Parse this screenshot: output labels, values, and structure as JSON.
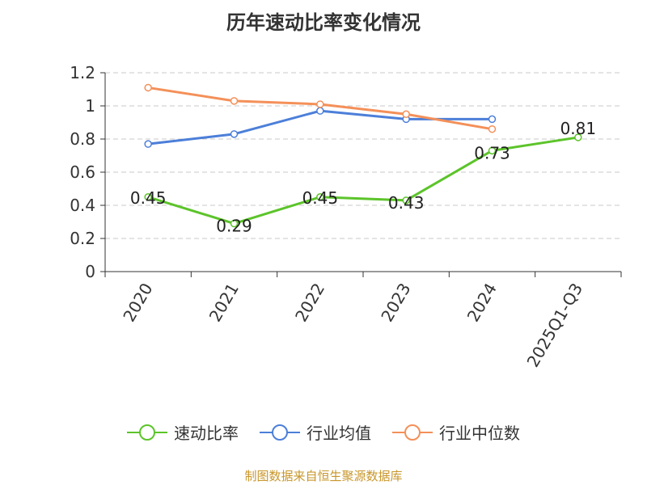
{
  "chart_data": {
    "type": "line",
    "title": "历年速动比率变化情况",
    "categories": [
      "2020",
      "2021",
      "2022",
      "2023",
      "2024",
      "2025Q1-Q3"
    ],
    "ylim": [
      0,
      1.2
    ],
    "yticks": [
      "0",
      "0.2",
      "0.4",
      "0.6",
      "0.8",
      "1",
      "1.2"
    ],
    "grid": true,
    "legend_position": "bottom",
    "series": [
      {
        "name": "速动比率",
        "color": "#5cc42a",
        "values": [
          0.45,
          0.29,
          0.45,
          0.43,
          0.73,
          0.81
        ],
        "data_labels": [
          "0.45",
          "0.29",
          "0.45",
          "0.43",
          "0.73",
          "0.81"
        ]
      },
      {
        "name": "行业均值",
        "color": "#4c7fd9",
        "values": [
          0.77,
          0.83,
          0.97,
          0.92,
          0.92,
          null
        ]
      },
      {
        "name": "行业中位数",
        "color": "#f49059",
        "values": [
          1.11,
          1.03,
          1.01,
          0.95,
          0.86,
          null
        ]
      }
    ]
  },
  "source": "制图数据来自恒生聚源数据库"
}
